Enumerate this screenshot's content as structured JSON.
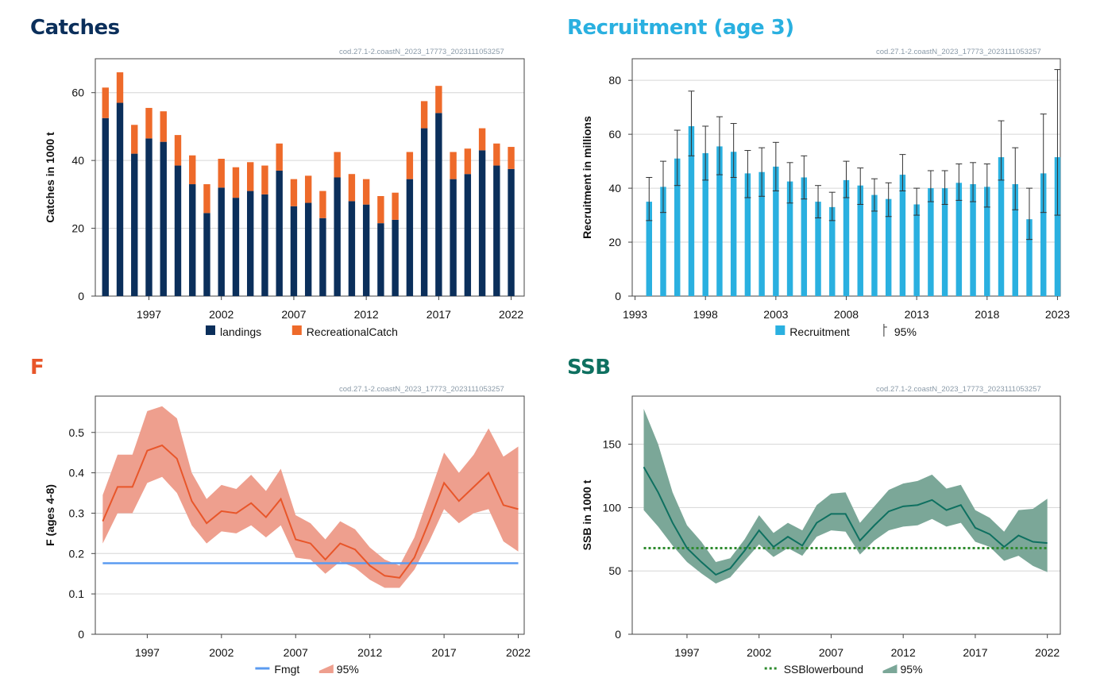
{
  "source_id": "cod.27.1-2.coastN_2023_17773_2023111053257",
  "panels": {
    "catches": {
      "title": "Catches",
      "color": "#0b2f5b"
    },
    "recruitment": {
      "title": "Recruitment (age 3)",
      "color": "#2ab0e0"
    },
    "f": {
      "title": "F",
      "color": "#e8562a"
    },
    "ssb": {
      "title": "SSB",
      "color": "#0e7060"
    }
  },
  "chart_data": [
    {
      "id": "catches",
      "type": "bar",
      "stacked": true,
      "x": [
        1994,
        1995,
        1996,
        1997,
        1998,
        1999,
        2000,
        2001,
        2002,
        2003,
        2004,
        2005,
        2006,
        2007,
        2008,
        2009,
        2010,
        2011,
        2012,
        2013,
        2014,
        2015,
        2016,
        2017,
        2018,
        2019,
        2020,
        2021,
        2022
      ],
      "series": [
        {
          "name": "landings",
          "color": "#0b2f5b",
          "values": [
            52.5,
            57,
            42,
            46.5,
            45.5,
            38.5,
            33,
            24.5,
            32,
            29,
            31,
            30,
            37,
            26.5,
            27.5,
            23,
            35,
            28,
            27,
            21.5,
            22.5,
            34.5,
            49.5,
            54,
            34.5,
            36,
            43,
            38.5,
            37.5
          ]
        },
        {
          "name": "RecreationalCatch",
          "color": "#ee6a2a",
          "values": [
            9,
            9,
            8.5,
            9,
            9,
            9,
            8.5,
            8.5,
            8.5,
            9,
            8.5,
            8.5,
            8,
            8,
            8,
            8,
            7.5,
            8,
            7.5,
            8,
            8,
            8,
            8,
            8,
            8,
            7.5,
            6.5,
            6.5,
            6.5
          ]
        }
      ],
      "xticks": [
        1997,
        2002,
        2007,
        2012,
        2017,
        2022
      ],
      "yticks": [
        0,
        20,
        40,
        60
      ],
      "ylim": [
        0,
        70
      ],
      "xlim": [
        1993.3,
        2022.9
      ],
      "ylabel": "Catches in 1000 t",
      "legend": "bottom"
    },
    {
      "id": "recruitment",
      "type": "bar",
      "x": [
        1994,
        1995,
        1996,
        1997,
        1998,
        1999,
        2000,
        2001,
        2002,
        2003,
        2004,
        2005,
        2006,
        2007,
        2008,
        2009,
        2010,
        2011,
        2012,
        2013,
        2014,
        2015,
        2016,
        2017,
        2018,
        2019,
        2020,
        2021,
        2022,
        2023
      ],
      "series": [
        {
          "name": "Recruitment",
          "color": "#2ab0e0",
          "values": [
            35,
            40.5,
            51,
            63,
            53,
            55.5,
            53.5,
            45.5,
            46,
            48,
            42.5,
            44,
            35,
            33,
            43,
            41,
            37.5,
            36,
            45,
            34,
            40,
            40,
            42,
            41.5,
            40.5,
            51.5,
            41.5,
            28.5,
            45.5,
            51.5
          ],
          "low": [
            28,
            31,
            41,
            52,
            43,
            45,
            44,
            36.5,
            37,
            39,
            34.5,
            36,
            29,
            28,
            36.5,
            34,
            31.5,
            29.5,
            39,
            30,
            35,
            34,
            35.5,
            35,
            33,
            43,
            32,
            21,
            31,
            30
          ],
          "high": [
            44,
            50,
            61.5,
            76,
            63,
            66.5,
            64,
            54,
            55,
            57,
            49.5,
            52,
            41,
            38.5,
            50,
            47.5,
            43.5,
            42,
            52.5,
            40,
            46.5,
            46.5,
            49,
            49.5,
            49,
            65,
            55,
            40,
            67.5,
            84
          ]
        }
      ],
      "error_series_name": "95%",
      "xticks": [
        1993,
        1998,
        2003,
        2008,
        2013,
        2018,
        2023
      ],
      "yticks": [
        0,
        20,
        40,
        60,
        80
      ],
      "ylim": [
        0,
        88
      ],
      "xlim": [
        1992.8,
        2023.2
      ],
      "ylabel": "Recruitment in millions",
      "legend": "bottom"
    },
    {
      "id": "f",
      "type": "line",
      "x": [
        1994,
        1995,
        1996,
        1997,
        1998,
        1999,
        2000,
        2001,
        2002,
        2003,
        2004,
        2005,
        2006,
        2007,
        2008,
        2009,
        2010,
        2011,
        2012,
        2013,
        2014,
        2015,
        2016,
        2017,
        2018,
        2019,
        2020,
        2021,
        2022
      ],
      "series": [
        {
          "name": "F",
          "color": "#e8562a",
          "values": [
            0.28,
            0.365,
            0.365,
            0.455,
            0.468,
            0.435,
            0.33,
            0.275,
            0.305,
            0.3,
            0.325,
            0.29,
            0.335,
            0.235,
            0.225,
            0.185,
            0.225,
            0.21,
            0.17,
            0.145,
            0.14,
            0.19,
            0.28,
            0.375,
            0.33,
            0.365,
            0.4,
            0.32,
            0.31
          ],
          "low": [
            0.225,
            0.3,
            0.3,
            0.375,
            0.39,
            0.35,
            0.27,
            0.225,
            0.255,
            0.25,
            0.27,
            0.24,
            0.27,
            0.19,
            0.185,
            0.15,
            0.18,
            0.165,
            0.135,
            0.115,
            0.115,
            0.16,
            0.23,
            0.31,
            0.275,
            0.3,
            0.31,
            0.23,
            0.205
          ],
          "high": [
            0.345,
            0.445,
            0.445,
            0.553,
            0.565,
            0.535,
            0.4,
            0.335,
            0.37,
            0.36,
            0.395,
            0.355,
            0.41,
            0.295,
            0.275,
            0.235,
            0.28,
            0.26,
            0.215,
            0.185,
            0.17,
            0.24,
            0.345,
            0.45,
            0.4,
            0.445,
            0.51,
            0.44,
            0.465
          ]
        },
        {
          "name": "Fmgt",
          "color": "#5b9bf0",
          "constant": 0.176,
          "range": [
            1994,
            2022
          ]
        }
      ],
      "band_name": "95%",
      "band_color": "#ee9f8e",
      "xticks": [
        1997,
        2002,
        2007,
        2012,
        2017,
        2022
      ],
      "yticks": [
        0,
        0.1,
        0.2,
        0.3,
        0.4,
        0.5
      ],
      "ylim": [
        0,
        0.59
      ],
      "xlim": [
        1993.5,
        2022.4
      ],
      "ylabel": "F (ages 4-8)",
      "legend": "bottom"
    },
    {
      "id": "ssb",
      "type": "line",
      "x": [
        1994,
        1995,
        1996,
        1997,
        1998,
        1999,
        2000,
        2001,
        2002,
        2003,
        2004,
        2005,
        2006,
        2007,
        2008,
        2009,
        2010,
        2011,
        2012,
        2013,
        2014,
        2015,
        2016,
        2017,
        2018,
        2019,
        2020,
        2021,
        2022
      ],
      "series": [
        {
          "name": "SSB",
          "color": "#0e7060",
          "values": [
            132,
            112,
            88,
            68,
            57,
            47,
            52,
            66,
            82,
            69,
            77,
            70,
            88,
            95,
            95,
            74,
            86,
            97,
            101,
            102,
            106,
            98,
            102,
            84,
            79,
            69,
            78,
            73,
            72
          ],
          "low": [
            98,
            85,
            70,
            57,
            48,
            40,
            45,
            58,
            71,
            61,
            68,
            62,
            77,
            82,
            81,
            63,
            74,
            82,
            85,
            86,
            91,
            85,
            88,
            73,
            69,
            58,
            62,
            54,
            49
          ],
          "high": [
            178,
            150,
            112,
            86,
            73,
            57,
            60,
            75,
            94,
            80,
            88,
            82,
            102,
            111,
            112,
            88,
            101,
            114,
            119,
            121,
            126,
            115,
            118,
            98,
            92,
            81,
            98,
            99,
            107
          ]
        },
        {
          "name": "SSBlowerbound",
          "color": "#2e8b2e",
          "constant": 68,
          "range": [
            1994,
            2022
          ],
          "dashed": true
        }
      ],
      "band_name": "95%",
      "band_color": "#7ba798",
      "xticks": [
        1997,
        2002,
        2007,
        2012,
        2017,
        2022
      ],
      "yticks": [
        0,
        50,
        100,
        150
      ],
      "ylim": [
        0,
        188
      ],
      "xlim": [
        1993.2,
        2022.9
      ],
      "ylabel": "SSB in 1000 t",
      "legend": "bottom"
    }
  ]
}
